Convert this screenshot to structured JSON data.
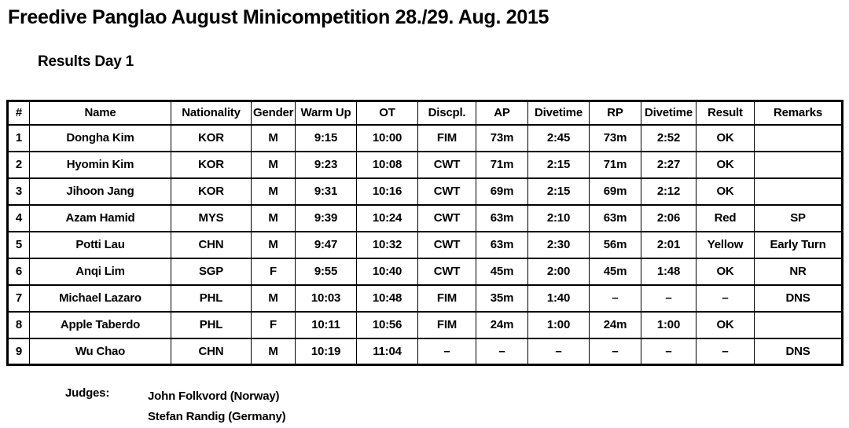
{
  "page": {
    "title": "Freedive Panglao August Minicompetition 28./29. Aug. 2015",
    "subtitle": "Results Day 1"
  },
  "table": {
    "columns": [
      "#",
      "Name",
      "Nationality",
      "Gender",
      "Warm Up",
      "OT",
      "Discpl.",
      "AP",
      "Divetime",
      "RP",
      "Divetime",
      "Result",
      "Remarks"
    ],
    "rows": [
      [
        "1",
        "Dongha Kim",
        "KOR",
        "M",
        "9:15",
        "10:00",
        "FIM",
        "73m",
        "2:45",
        "73m",
        "2:52",
        "OK",
        ""
      ],
      [
        "2",
        "Hyomin Kim",
        "KOR",
        "M",
        "9:23",
        "10:08",
        "CWT",
        "71m",
        "2:15",
        "71m",
        "2:27",
        "OK",
        ""
      ],
      [
        "3",
        "Jihoon Jang",
        "KOR",
        "M",
        "9:31",
        "10:16",
        "CWT",
        "69m",
        "2:15",
        "69m",
        "2:12",
        "OK",
        ""
      ],
      [
        "4",
        "Azam Hamid",
        "MYS",
        "M",
        "9:39",
        "10:24",
        "CWT",
        "63m",
        "2:10",
        "63m",
        "2:06",
        "Red",
        "SP"
      ],
      [
        "5",
        "Potti Lau",
        "CHN",
        "M",
        "9:47",
        "10:32",
        "CWT",
        "63m",
        "2:30",
        "56m",
        "2:01",
        "Yellow",
        "Early Turn"
      ],
      [
        "6",
        "Anqi Lim",
        "SGP",
        "F",
        "9:55",
        "10:40",
        "CWT",
        "45m",
        "2:00",
        "45m",
        "1:48",
        "OK",
        "NR"
      ],
      [
        "7",
        "Michael Lazaro",
        "PHL",
        "M",
        "10:03",
        "10:48",
        "FIM",
        "35m",
        "1:40",
        "–",
        "–",
        "–",
        "DNS"
      ],
      [
        "8",
        "Apple Taberdo",
        "PHL",
        "F",
        "10:11",
        "10:56",
        "FIM",
        "24m",
        "1:00",
        "24m",
        "1:00",
        "OK",
        ""
      ],
      [
        "9",
        "Wu Chao",
        "CHN",
        "M",
        "10:19",
        "11:04",
        "–",
        "–",
        "–",
        "–",
        "–",
        "–",
        "DNS"
      ]
    ]
  },
  "judges": {
    "label": "Judges:",
    "names": [
      "John Folkvord (Norway)",
      "Stefan Randig (Germany)"
    ]
  },
  "colors": {
    "text": "#000000",
    "background": "#ffffff",
    "border": "#000000"
  }
}
